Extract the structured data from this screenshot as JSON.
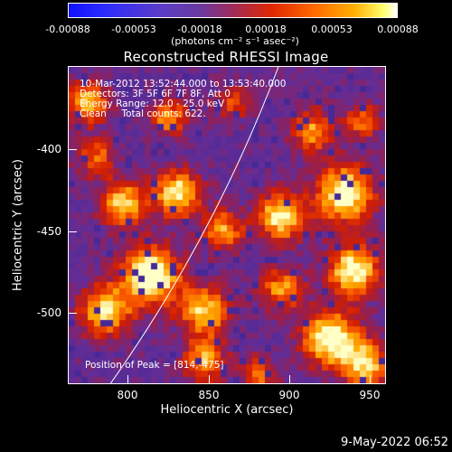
{
  "colorbar": {
    "ticks": [
      "-0.00088",
      "-0.00053",
      "-0.00018",
      "0.00018",
      "0.00053",
      "0.00088"
    ],
    "unit": "(photons cm⁻² s⁻¹ asec⁻²)"
  },
  "title": "Reconstructed RHESSI Image",
  "info": {
    "time_range": "10-Mar-2012 13:52:44.000 to 13:53:40.000",
    "detectors": "Detectors: 3F 5F 6F 7F 8F, Att 0",
    "energy": "Energy Range: 12.0 - 25.0 keV",
    "method": "Clean     Total counts: 622.",
    "peak": "Position of Peak = [814,-475]"
  },
  "axes": {
    "xlabel": "Heliocentric X (arcsec)",
    "ylabel": "Heliocentric Y (arcsec)",
    "xticks": [
      "800",
      "850",
      "900",
      "950"
    ],
    "yticks": [
      "-400",
      "-450",
      "-500"
    ]
  },
  "timestamp": "9-May-2022 06:52",
  "colors": {
    "background": "#000000",
    "limb_line": "#ffffff"
  }
}
